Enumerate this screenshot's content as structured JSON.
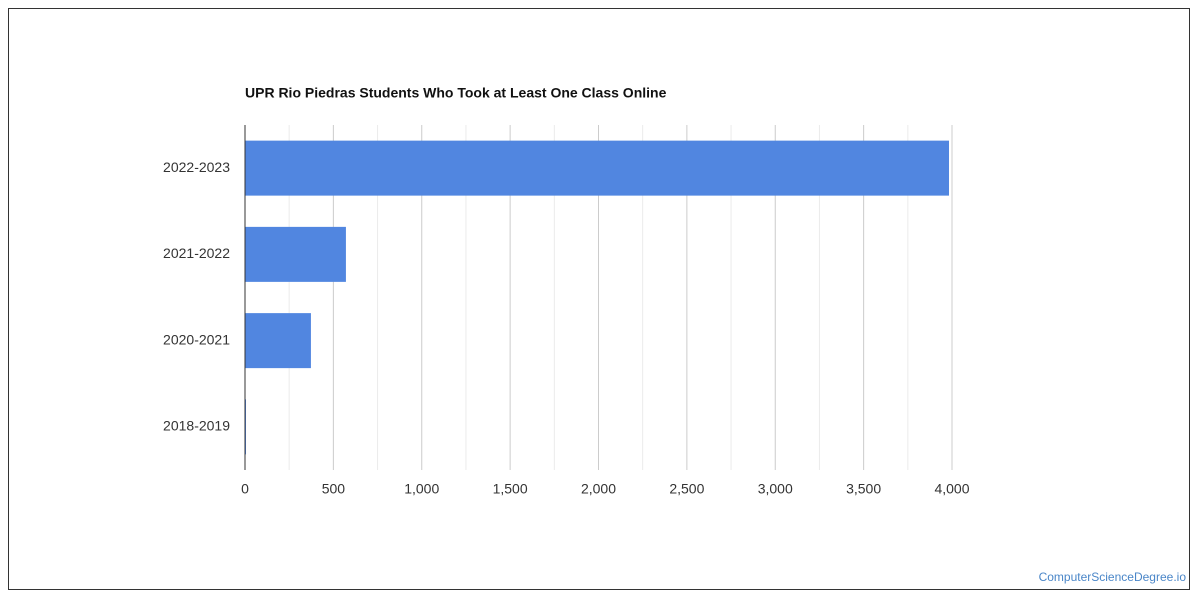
{
  "chart_data": {
    "type": "bar",
    "orientation": "horizontal",
    "title": "UPR Rio Piedras Students Who Took at Least One Class Online",
    "categories": [
      "2022-2023",
      "2021-2022",
      "2020-2021",
      "2018-2019"
    ],
    "values": [
      3983,
      571,
      373,
      5
    ],
    "color": "#5186e0",
    "xlim": [
      0,
      4000
    ],
    "xticks": [
      0,
      500,
      {
        "value": 1000,
        "label": "1,000"
      },
      {
        "value": 1500,
        "label": "1,500"
      },
      {
        "value": 2000,
        "label": "2,000"
      },
      {
        "value": 2500,
        "label": "2,500"
      },
      {
        "value": 3000,
        "label": "3,000"
      },
      {
        "value": 3500,
        "label": "3,500"
      },
      {
        "value": 4000,
        "label": "4,000"
      }
    ],
    "grid": true,
    "minor_grid": true
  },
  "footer": {
    "credit": "ComputerScienceDegree.io"
  }
}
